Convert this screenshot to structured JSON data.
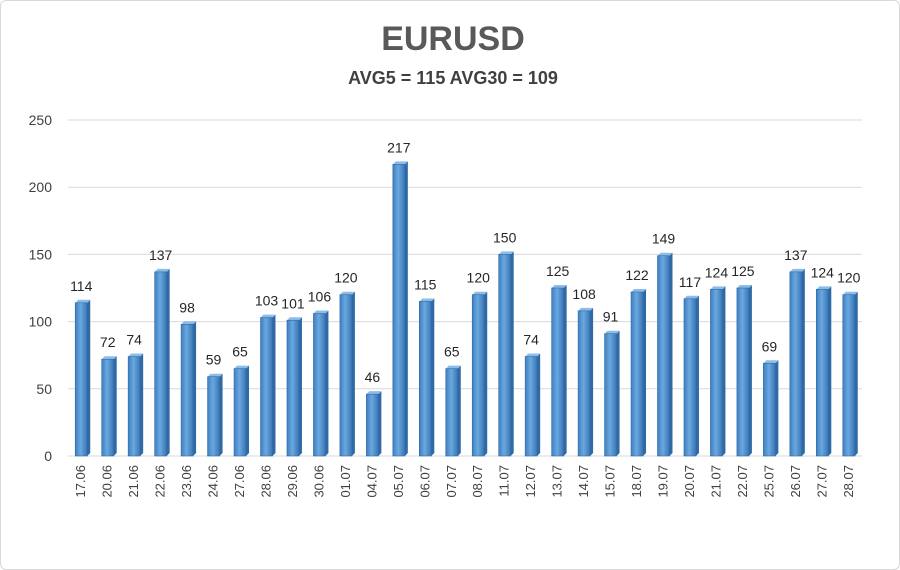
{
  "chart_data": {
    "type": "bar",
    "title": "EURUSD",
    "subtitle": "AVG5 = 115 AVG30 = 109",
    "xlabel": "",
    "ylabel": "",
    "ylim": [
      0,
      250
    ],
    "yticks": [
      0,
      50,
      100,
      150,
      200,
      250
    ],
    "grid": true,
    "legend": "none",
    "bar_color": "#5b9bd5",
    "categories": [
      "17.06",
      "20.06",
      "21.06",
      "22.06",
      "23.06",
      "24.06",
      "27.06",
      "28.06",
      "29.06",
      "30.06",
      "01.07",
      "04.07",
      "05.07",
      "06.07",
      "07.07",
      "08.07",
      "11.07",
      "12.07",
      "13.07",
      "14.07",
      "15.07",
      "18.07",
      "19.07",
      "20.07",
      "21.07",
      "22.07",
      "25.07",
      "26.07",
      "27.07",
      "28.07"
    ],
    "values": [
      114,
      72,
      74,
      137,
      98,
      59,
      65,
      103,
      101,
      106,
      120,
      46,
      217,
      115,
      65,
      120,
      150,
      74,
      125,
      108,
      91,
      122,
      149,
      117,
      124,
      125,
      69,
      137,
      124,
      120
    ]
  }
}
